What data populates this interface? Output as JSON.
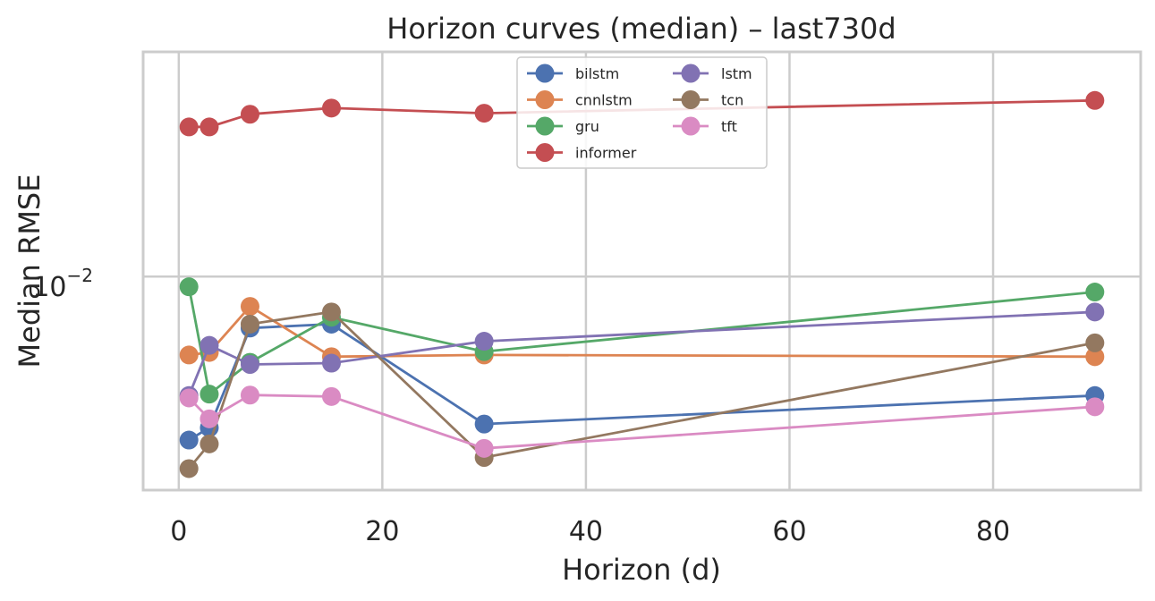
{
  "chart_data": {
    "type": "line",
    "title": "Horizon curves (median) – last730d",
    "xlabel": "Horizon (d)",
    "ylabel": "Median RMSE",
    "x": [
      1,
      3,
      7,
      15,
      30,
      90
    ],
    "xlim": [
      -3.5,
      94.5
    ],
    "ylim": [
      0.0053,
      0.0195
    ],
    "yscale": "log",
    "xticks": [
      0,
      20,
      40,
      60,
      80
    ],
    "yticks": [
      {
        "value": 0.01,
        "base": "10",
        "exponent": "−2"
      }
    ],
    "grid": true,
    "legend_position": "top-center",
    "legend_columns": 2,
    "series": [
      {
        "name": "bilstm",
        "color": "#4c72b0",
        "values": [
          0.00615,
          0.00638,
          0.00858,
          0.00868,
          0.00645,
          0.00702
        ]
      },
      {
        "name": "cnnlstm",
        "color": "#dd8452",
        "values": [
          0.00792,
          0.00798,
          0.00915,
          0.00788,
          0.00792,
          0.00788
        ]
      },
      {
        "name": "gru",
        "color": "#55a868",
        "values": [
          0.0097,
          0.00705,
          0.00775,
          0.00886,
          0.008,
          0.00955
        ]
      },
      {
        "name": "informer",
        "color": "#c44e52",
        "values": [
          0.0156,
          0.0156,
          0.0162,
          0.0165,
          0.01625,
          0.01688
        ]
      },
      {
        "name": "lstm",
        "color": "#8172b3",
        "values": [
          0.00702,
          0.00815,
          0.0077,
          0.00773,
          0.00825,
          0.009
        ]
      },
      {
        "name": "tcn",
        "color": "#937860",
        "values": [
          0.00565,
          0.00608,
          0.00868,
          0.009,
          0.00584,
          0.00821
        ]
      },
      {
        "name": "tft",
        "color": "#da8bc3",
        "values": [
          0.00697,
          0.00655,
          0.00703,
          0.007,
          0.006,
          0.00679
        ]
      }
    ]
  }
}
